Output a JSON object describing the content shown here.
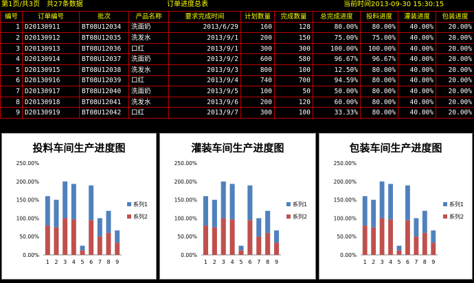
{
  "header": {
    "page": "第1页/共3页",
    "count": "共27条数据",
    "title": "订单进度总表",
    "time_label": "当前时间:",
    "time": "2013-09-30 15:30:15"
  },
  "table": {
    "columns": [
      "编号",
      "订单编号",
      "批次",
      "产品名称",
      "要求完成时间",
      "计划数量",
      "完成数量",
      "总完成进度",
      "投料进度",
      "灌装进度",
      "包装进度"
    ],
    "rows": [
      [
        "1",
        "D20130911",
        "BT08U12034",
        "洗面奶",
        "2013/6/29",
        "160",
        "128",
        "80.00%",
        "80.00%",
        "40.00%",
        "20.00%"
      ],
      [
        "2",
        "D20130912",
        "BT08U12035",
        "洗发水",
        "2013/9/1",
        "200",
        "150",
        "75.00%",
        "75.00%",
        "40.00%",
        "20.00%"
      ],
      [
        "3",
        "D20130913",
        "BT08U12036",
        "口红",
        "2013/9/1",
        "300",
        "300",
        "100.00%",
        "100.00%",
        "40.00%",
        "20.00%"
      ],
      [
        "4",
        "D20130914",
        "BT08U12037",
        "洗面奶",
        "2013/9/2",
        "600",
        "580",
        "96.67%",
        "96.67%",
        "40.00%",
        "20.00%"
      ],
      [
        "5",
        "D20130915",
        "BT08U12038",
        "洗发水",
        "2013/9/3",
        "800",
        "100",
        "12.50%",
        "80.00%",
        "40.00%",
        "20.00%"
      ],
      [
        "6",
        "D20130916",
        "BT08U12039",
        "口红",
        "2013/9/4",
        "740",
        "700",
        "94.59%",
        "80.00%",
        "40.00%",
        "20.00%"
      ],
      [
        "7",
        "D20130917",
        "BT08U12040",
        "洗面奶",
        "2013/9/5",
        "100",
        "50",
        "50.00%",
        "80.00%",
        "40.00%",
        "20.00%"
      ],
      [
        "8",
        "D20130918",
        "BT08U12041",
        "洗发水",
        "2013/9/6",
        "200",
        "120",
        "60.00%",
        "80.00%",
        "40.00%",
        "20.00%"
      ],
      [
        "9",
        "D20130919",
        "BT08U12042",
        "口红",
        "2013/9/7",
        "300",
        "100",
        "33.33%",
        "80.00%",
        "40.00%",
        "20.00%"
      ]
    ]
  },
  "colors": {
    "background": "#000000",
    "header_text": "#ffff00",
    "cell_text": "#ffffff",
    "grid_line": "#c00000",
    "series1": "#4f81bd",
    "series2": "#c0504d"
  },
  "chart_data": [
    {
      "type": "bar",
      "stacked": true,
      "title": "投料车间生产进度图",
      "categories": [
        "1",
        "2",
        "3",
        "4",
        "5",
        "6",
        "7",
        "8",
        "9"
      ],
      "series": [
        {
          "name": "系列1",
          "values": [
            80,
            75,
            100,
            96.67,
            12.5,
            94.59,
            50,
            60,
            33.33
          ]
        },
        {
          "name": "系列2",
          "values": [
            80,
            75,
            100,
            96.67,
            12.5,
            94.59,
            50,
            60,
            33.33
          ]
        }
      ],
      "ylim": [
        0,
        250
      ],
      "yticks": [
        "0.00%",
        "50.00%",
        "100.00%",
        "150.00%",
        "200.00%",
        "250.00%"
      ],
      "legend": "right"
    },
    {
      "type": "bar",
      "stacked": true,
      "title": "灌装车间生产进度图",
      "categories": [
        "1",
        "2",
        "3",
        "4",
        "5",
        "6",
        "7",
        "8",
        "9"
      ],
      "series": [
        {
          "name": "系列1",
          "values": [
            80,
            75,
            100,
            96.67,
            12.5,
            94.59,
            50,
            60,
            33.33
          ]
        },
        {
          "name": "系列2",
          "values": [
            80,
            75,
            100,
            96.67,
            12.5,
            94.59,
            50,
            60,
            33.33
          ]
        }
      ],
      "ylim": [
        0,
        250
      ],
      "yticks": [
        "0.00%",
        "50.00%",
        "100.00%",
        "150.00%",
        "200.00%",
        "250.00%"
      ],
      "legend": "right"
    },
    {
      "type": "bar",
      "stacked": true,
      "title": "包装车间生产进度图",
      "categories": [
        "1",
        "2",
        "3",
        "4",
        "5",
        "6",
        "7",
        "8",
        "9"
      ],
      "series": [
        {
          "name": "系列1",
          "values": [
            80,
            75,
            100,
            96.67,
            12.5,
            94.59,
            50,
            60,
            33.33
          ]
        },
        {
          "name": "系列2",
          "values": [
            80,
            75,
            100,
            96.67,
            12.5,
            94.59,
            50,
            60,
            33.33
          ]
        }
      ],
      "ylim": [
        0,
        250
      ],
      "yticks": [
        "0.00%",
        "50.00%",
        "100.00%",
        "150.00%",
        "200.00%",
        "250.00%"
      ],
      "legend": "right"
    }
  ]
}
